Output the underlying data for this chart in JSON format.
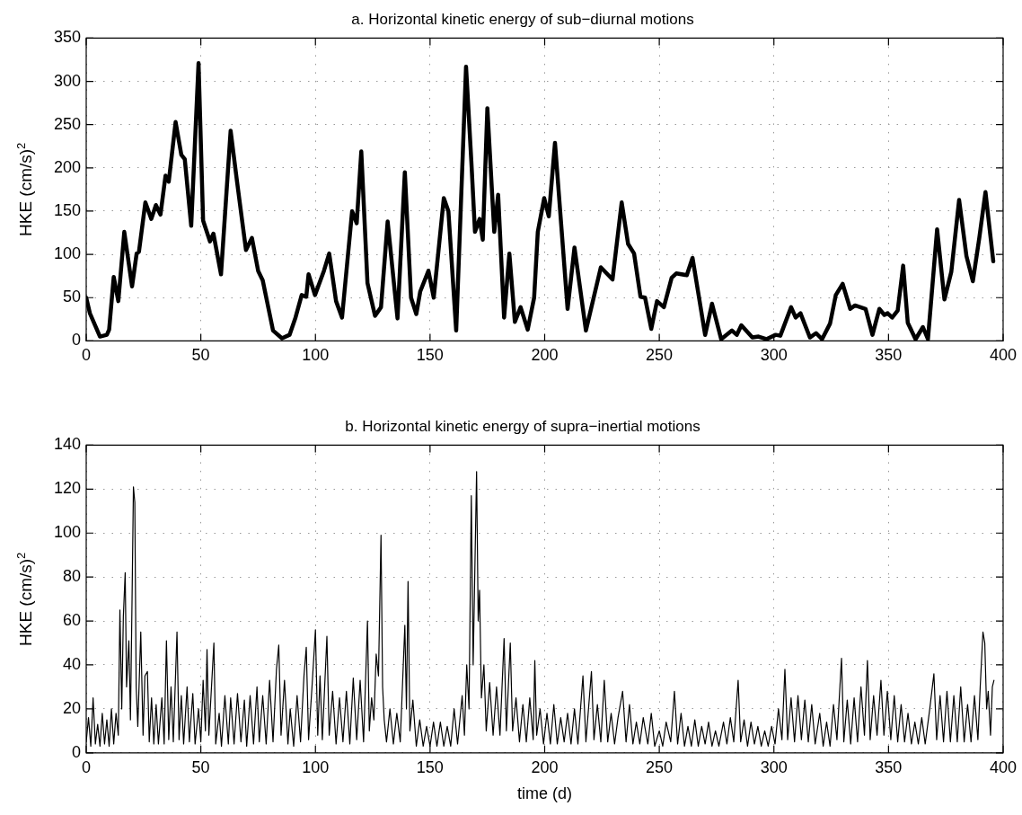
{
  "chart_data": [
    {
      "type": "line",
      "title": "a. Horizontal kinetic energy of sub−diurnal motions",
      "ylabel": "HKE (cm/s)$^{2}$",
      "xlim": [
        0,
        400
      ],
      "xticks": [
        0,
        50,
        100,
        150,
        200,
        250,
        300,
        350,
        400
      ],
      "ylim": [
        0,
        350
      ],
      "yticks": [
        0,
        50,
        100,
        150,
        200,
        250,
        300,
        350
      ],
      "grid": true,
      "legend": false,
      "marker": "none",
      "line_style": "solid",
      "series": [
        {
          "color": "#000000",
          "x": [
            0,
            1.6,
            6,
            9,
            10,
            12,
            14,
            16.6,
            20,
            22,
            23,
            25.8,
            28.4,
            30.4,
            32.4,
            34.6,
            36,
            39,
            41.5,
            43,
            45.8,
            49,
            51,
            54,
            55.5,
            58.8,
            63,
            65.8,
            69.7,
            72.3,
            75,
            77,
            81.5,
            85.4,
            88.7,
            91.3,
            94,
            96,
            97,
            99.8,
            103.7,
            106,
            109,
            111.6,
            116,
            118,
            120,
            122.7,
            126,
            128.6,
            131.5,
            135.8,
            139,
            141.7,
            144,
            145.7,
            149.3,
            151.6,
            156,
            158,
            161.4,
            165.7,
            168,
            169.6,
            171.6,
            173,
            175,
            178,
            179.7,
            182.3,
            184.6,
            187,
            189.5,
            192.6,
            195.4,
            197,
            199.8,
            201.8,
            204.5,
            210,
            213,
            218,
            224.5,
            229.6,
            233.6,
            236.4,
            239,
            241.8,
            243.8,
            246.5,
            249,
            252,
            255.4,
            257.4,
            262,
            264.5,
            270,
            273,
            277,
            281.7,
            283.8,
            285.8,
            290.6,
            293.3,
            296.7,
            300.8,
            302.8,
            307.5,
            309.5,
            311.6,
            315.7,
            318.4,
            321,
            324.5,
            327,
            330,
            333.3,
            335.4,
            340,
            343,
            346,
            348.2,
            349.6,
            351.6,
            354,
            356.4,
            358.4,
            361.8,
            365,
            367.2,
            371.2,
            374.4,
            377.4,
            380.8,
            384,
            386.8,
            389.6,
            392.3,
            395.7
          ],
          "values": [
            50,
            32,
            5,
            7,
            13,
            74,
            46,
            126,
            63,
            101,
            103,
            160,
            141,
            157,
            146,
            191,
            184,
            253,
            215,
            210,
            133,
            321,
            139,
            115,
            124,
            77,
            243,
            184,
            105,
            119,
            81,
            70,
            12,
            3,
            7,
            27,
            53,
            51,
            77,
            53,
            81,
            101,
            46,
            27,
            150,
            136,
            219,
            67,
            29,
            39,
            138,
            26,
            195,
            50,
            31,
            57,
            81,
            50,
            165,
            150,
            12,
            317,
            208,
            126,
            141,
            117,
            269,
            126,
            169,
            27,
            101,
            22,
            39,
            13,
            50,
            126,
            165,
            144,
            229,
            37,
            108,
            12,
            85,
            71,
            160,
            112,
            101,
            51,
            50,
            14,
            46,
            39,
            73,
            78,
            76,
            96,
            7,
            43,
            2,
            12,
            7,
            18,
            4,
            5,
            2,
            7,
            6,
            39,
            27,
            32,
            4,
            9,
            2,
            20,
            53,
            66,
            37,
            41,
            37,
            7,
            37,
            30,
            32,
            27,
            35,
            87,
            21,
            2,
            16,
            2,
            129,
            48,
            80,
            163,
            98,
            69,
            119,
            172,
            92
          ]
        }
      ]
    },
    {
      "type": "line",
      "title": "b. Horizontal kinetic energy of supra−inertial motions",
      "xlabel": "time (d)",
      "ylabel": "HKE (cm/s)$^{2}$",
      "xlim": [
        0,
        400
      ],
      "xticks": [
        0,
        50,
        100,
        150,
        200,
        250,
        300,
        350,
        400
      ],
      "ylim": [
        0,
        140
      ],
      "yticks": [
        0,
        20,
        40,
        60,
        80,
        100,
        120,
        140
      ],
      "grid": true,
      "legend": false,
      "marker": "none",
      "line_style": "solid",
      "series": [
        {
          "color": "#000000",
          "x": [
            0,
            1,
            2,
            3,
            4,
            5,
            6,
            7,
            8,
            9,
            10,
            11,
            12,
            13,
            14,
            14.7,
            15.5,
            16.2,
            17,
            17.6,
            18.6,
            19.3,
            20,
            20.6,
            21.2,
            21.8,
            22.5,
            23.8,
            24.8,
            25.6,
            26.7,
            27.5,
            28.5,
            29.5,
            30.5,
            31.5,
            33,
            34,
            35,
            36,
            37,
            38,
            39.6,
            40.5,
            41.5,
            42.5,
            44,
            45,
            46.5,
            47.5,
            49,
            50,
            51,
            52,
            52.7,
            53.5,
            55.7,
            56.5,
            58,
            59,
            60.5,
            62,
            63,
            64.5,
            66,
            67.5,
            69,
            70,
            71.5,
            73,
            74.5,
            75.5,
            77,
            78.5,
            80,
            81.5,
            83,
            84,
            85,
            86.5,
            88,
            89,
            90.5,
            92,
            93.5,
            95,
            96,
            97,
            98.5,
            100,
            101,
            102,
            103,
            105,
            106,
            107.5,
            109,
            110.5,
            112,
            113.5,
            115,
            116.5,
            118,
            119.5,
            121,
            122.7,
            123.5,
            124.5,
            125.5,
            126.5,
            127.5,
            128.6,
            129.3,
            130,
            131,
            132.5,
            134,
            135.5,
            137,
            139,
            139.7,
            140.4,
            141.2,
            142.5,
            144,
            145.5,
            147,
            148.5,
            150,
            151.5,
            153,
            154.5,
            156,
            157.5,
            159,
            160.5,
            162,
            164,
            165,
            166,
            167,
            168,
            168.8,
            170.3,
            171,
            171.6,
            172.4,
            173.5,
            174.5,
            176,
            177.5,
            179,
            180.5,
            182.3,
            183.3,
            185,
            186,
            187.5,
            189,
            190.5,
            192,
            193.5,
            195,
            195.7,
            196.5,
            198,
            199.5,
            201,
            202.5,
            204,
            205.5,
            207,
            208.5,
            210,
            211.5,
            213,
            214.5,
            216.7,
            218,
            220.4,
            221.5,
            223,
            224.5,
            226,
            227.5,
            229,
            230.5,
            232,
            234,
            235.5,
            237,
            238.5,
            240,
            241.5,
            243,
            245,
            246.5,
            248,
            250,
            251.5,
            253,
            255,
            256.6,
            258,
            259.5,
            261,
            262.5,
            264,
            265.5,
            267,
            268.5,
            270,
            271.5,
            273,
            274.5,
            276,
            278,
            279.5,
            281,
            282.5,
            284.4,
            285.5,
            287,
            288.5,
            290,
            291.5,
            293,
            294.5,
            296,
            297.5,
            299,
            300.5,
            302,
            303.5,
            304.8,
            306,
            307.5,
            309,
            310.5,
            312,
            313.5,
            315,
            316.5,
            318,
            320,
            321.5,
            323,
            324.5,
            326,
            327.5,
            329.5,
            330.5,
            332,
            333.5,
            335,
            336.5,
            338,
            339.5,
            340.8,
            342,
            343.5,
            345,
            346.7,
            348,
            349.5,
            351,
            352.5,
            354,
            355.5,
            357,
            358.5,
            360,
            361.5,
            363,
            364.5,
            366,
            368,
            369.8,
            371,
            372.5,
            374,
            375.5,
            377,
            378.5,
            380,
            381.5,
            383,
            384.5,
            386,
            387.5,
            389,
            390,
            391.2,
            392,
            392.8,
            393.5,
            394.5,
            395.3,
            396
          ],
          "values": [
            5,
            16,
            3,
            25,
            4,
            13,
            3,
            18,
            4,
            15,
            3,
            20,
            4,
            18,
            8,
            65,
            20,
            62,
            82,
            30,
            51,
            15,
            70,
            121,
            114,
            30,
            12,
            55,
            8,
            35,
            37,
            5,
            25,
            4,
            22,
            4,
            25,
            4,
            51,
            6,
            30,
            5,
            55,
            6,
            26,
            4,
            30,
            5,
            27,
            4,
            20,
            5,
            33,
            10,
            47,
            8,
            50,
            4,
            18,
            3,
            26,
            4,
            25,
            4,
            27,
            5,
            24,
            3,
            26,
            4,
            30,
            5,
            26,
            4,
            33,
            5,
            38,
            49,
            8,
            33,
            4,
            20,
            3,
            26,
            5,
            35,
            48,
            6,
            30,
            56,
            8,
            35,
            6,
            53,
            8,
            28,
            4,
            25,
            5,
            28,
            4,
            34,
            6,
            33,
            5,
            60,
            10,
            25,
            15,
            45,
            35,
            99,
            30,
            15,
            5,
            20,
            4,
            18,
            5,
            58,
            20,
            78,
            10,
            24,
            3,
            15,
            3,
            12,
            3,
            14,
            3,
            14,
            3,
            12,
            3,
            20,
            4,
            26,
            8,
            40,
            20,
            117,
            40,
            128,
            60,
            74,
            25,
            40,
            10,
            32,
            8,
            30,
            8,
            52,
            10,
            50,
            10,
            25,
            5,
            22,
            5,
            25,
            6,
            42,
            8,
            20,
            4,
            18,
            4,
            22,
            4,
            16,
            5,
            18,
            4,
            20,
            4,
            35,
            5,
            37,
            6,
            22,
            5,
            33,
            5,
            18,
            4,
            16,
            28,
            5,
            22,
            4,
            14,
            4,
            16,
            4,
            18,
            3,
            10,
            3,
            14,
            5,
            28,
            4,
            18,
            3,
            12,
            3,
            15,
            3,
            12,
            4,
            14,
            3,
            10,
            3,
            14,
            4,
            16,
            5,
            33,
            5,
            15,
            3,
            14,
            4,
            12,
            3,
            10,
            3,
            12,
            4,
            20,
            6,
            38,
            6,
            25,
            5,
            26,
            6,
            24,
            5,
            22,
            4,
            18,
            3,
            14,
            3,
            22,
            6,
            43,
            5,
            24,
            4,
            25,
            5,
            30,
            8,
            42,
            6,
            26,
            8,
            33,
            8,
            28,
            6,
            26,
            5,
            22,
            5,
            18,
            4,
            14,
            4,
            16,
            4,
            20,
            36,
            6,
            26,
            5,
            28,
            5,
            26,
            5,
            30,
            5,
            22,
            5,
            26,
            6,
            30,
            55,
            50,
            20,
            28,
            8,
            30,
            33
          ]
        }
      ]
    }
  ]
}
